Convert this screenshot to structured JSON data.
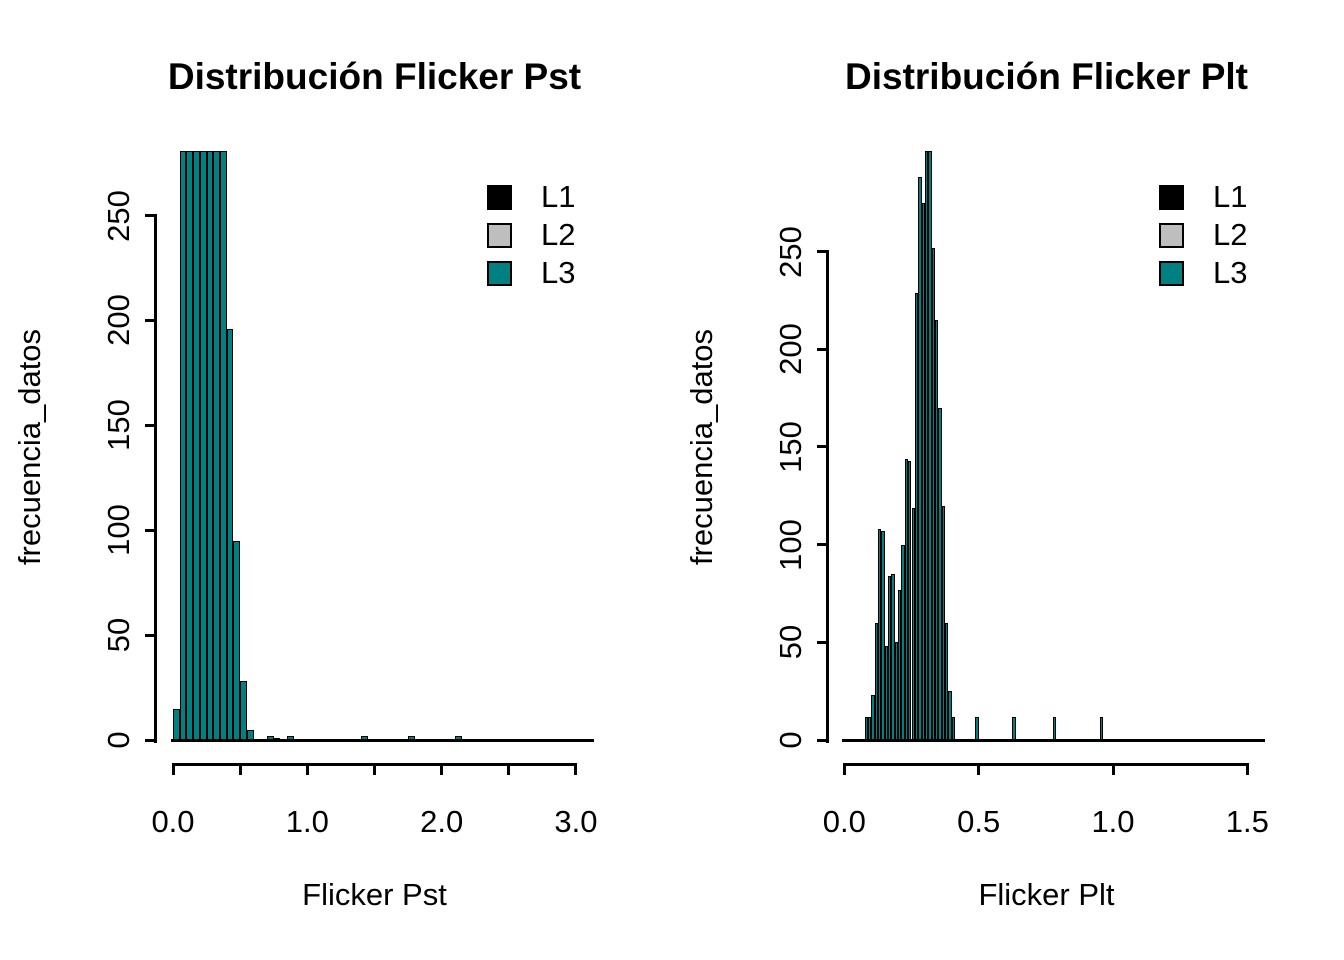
{
  "figure": {
    "background": "#FFFFFF"
  },
  "legend": {
    "entries": [
      {
        "label": "L1",
        "color": "#000000"
      },
      {
        "label": "L2",
        "color": "#BEBEBE"
      },
      {
        "label": "L3",
        "color": "#008080"
      }
    ]
  },
  "chart_data": [
    {
      "type": "bar",
      "subtype": "histogram",
      "title": "Distribución Flicker Pst",
      "xlabel": "Flicker Pst",
      "ylabel": "frecuencia_datos",
      "xlim": [
        0.0,
        3.0
      ],
      "ylim": [
        0,
        250
      ],
      "grid": false,
      "legend_position": "topright",
      "legend_entries": [
        "L1",
        "L2",
        "L3"
      ],
      "x_ticks": [
        0.0,
        0.5,
        1.0,
        1.5,
        2.0,
        2.5,
        3.0
      ],
      "x_labeled_ticks": [
        [
          0.0,
          "0.0"
        ],
        [
          1.0,
          "1.0"
        ],
        [
          2.0,
          "2.0"
        ],
        [
          3.0,
          "3.0"
        ]
      ],
      "y_ticks": [
        0,
        50,
        100,
        150,
        200,
        250
      ],
      "bin_width": 0.05,
      "bar_fill": "#008080",
      "bar_border": "#000000",
      "bars_clipped_at_plot_top": true,
      "bins": [
        [
          0.0,
          15
        ],
        [
          0.05,
          285
        ],
        [
          0.1,
          285
        ],
        [
          0.15,
          285
        ],
        [
          0.2,
          285
        ],
        [
          0.25,
          285
        ],
        [
          0.3,
          285
        ],
        [
          0.35,
          285
        ],
        [
          0.4,
          196
        ],
        [
          0.45,
          95
        ],
        [
          0.5,
          28
        ],
        [
          0.55,
          5
        ],
        [
          0.7,
          2
        ],
        [
          0.75,
          1
        ],
        [
          0.85,
          2
        ],
        [
          1.4,
          2
        ],
        [
          1.75,
          2
        ],
        [
          2.1,
          2
        ]
      ]
    },
    {
      "type": "bar",
      "subtype": "histogram",
      "title": "Distribución Flicker Plt",
      "xlabel": "Flicker Plt",
      "ylabel": "frecuencia_datos",
      "xlim": [
        0.0,
        1.5
      ],
      "ylim": [
        0,
        250
      ],
      "grid": false,
      "legend_position": "topright",
      "legend_entries": [
        "L1",
        "L2",
        "L3"
      ],
      "x_ticks": [
        0.0,
        0.5,
        1.0,
        1.5
      ],
      "x_labeled_ticks": [
        [
          0.0,
          "0.0"
        ],
        [
          0.5,
          "0.5"
        ],
        [
          1.0,
          "1.0"
        ],
        [
          1.5,
          "1.5"
        ]
      ],
      "y_ticks": [
        0,
        50,
        100,
        150,
        200,
        250
      ],
      "bin_width": 0.0125,
      "bar_fill": "#008080",
      "bar_border": "#000000",
      "bars_clipped_at_plot_top": true,
      "bins": [
        [
          0.075,
          12
        ],
        [
          0.0875,
          12
        ],
        [
          0.1,
          23
        ],
        [
          0.1125,
          60
        ],
        [
          0.125,
          108
        ],
        [
          0.1375,
          107
        ],
        [
          0.15,
          48
        ],
        [
          0.1625,
          84
        ],
        [
          0.175,
          85
        ],
        [
          0.1875,
          50
        ],
        [
          0.2,
          77
        ],
        [
          0.2125,
          100
        ],
        [
          0.225,
          144
        ],
        [
          0.2375,
          143
        ],
        [
          0.25,
          119
        ],
        [
          0.2625,
          229
        ],
        [
          0.275,
          288
        ],
        [
          0.2875,
          275
        ],
        [
          0.3,
          305
        ],
        [
          0.3125,
          305
        ],
        [
          0.325,
          252
        ],
        [
          0.3375,
          215
        ],
        [
          0.35,
          170
        ],
        [
          0.3625,
          120
        ],
        [
          0.375,
          60
        ],
        [
          0.3875,
          25
        ],
        [
          0.4,
          12
        ],
        [
          0.4875,
          12
        ],
        [
          0.625,
          12
        ],
        [
          0.775,
          12
        ],
        [
          0.95,
          12
        ]
      ]
    }
  ]
}
